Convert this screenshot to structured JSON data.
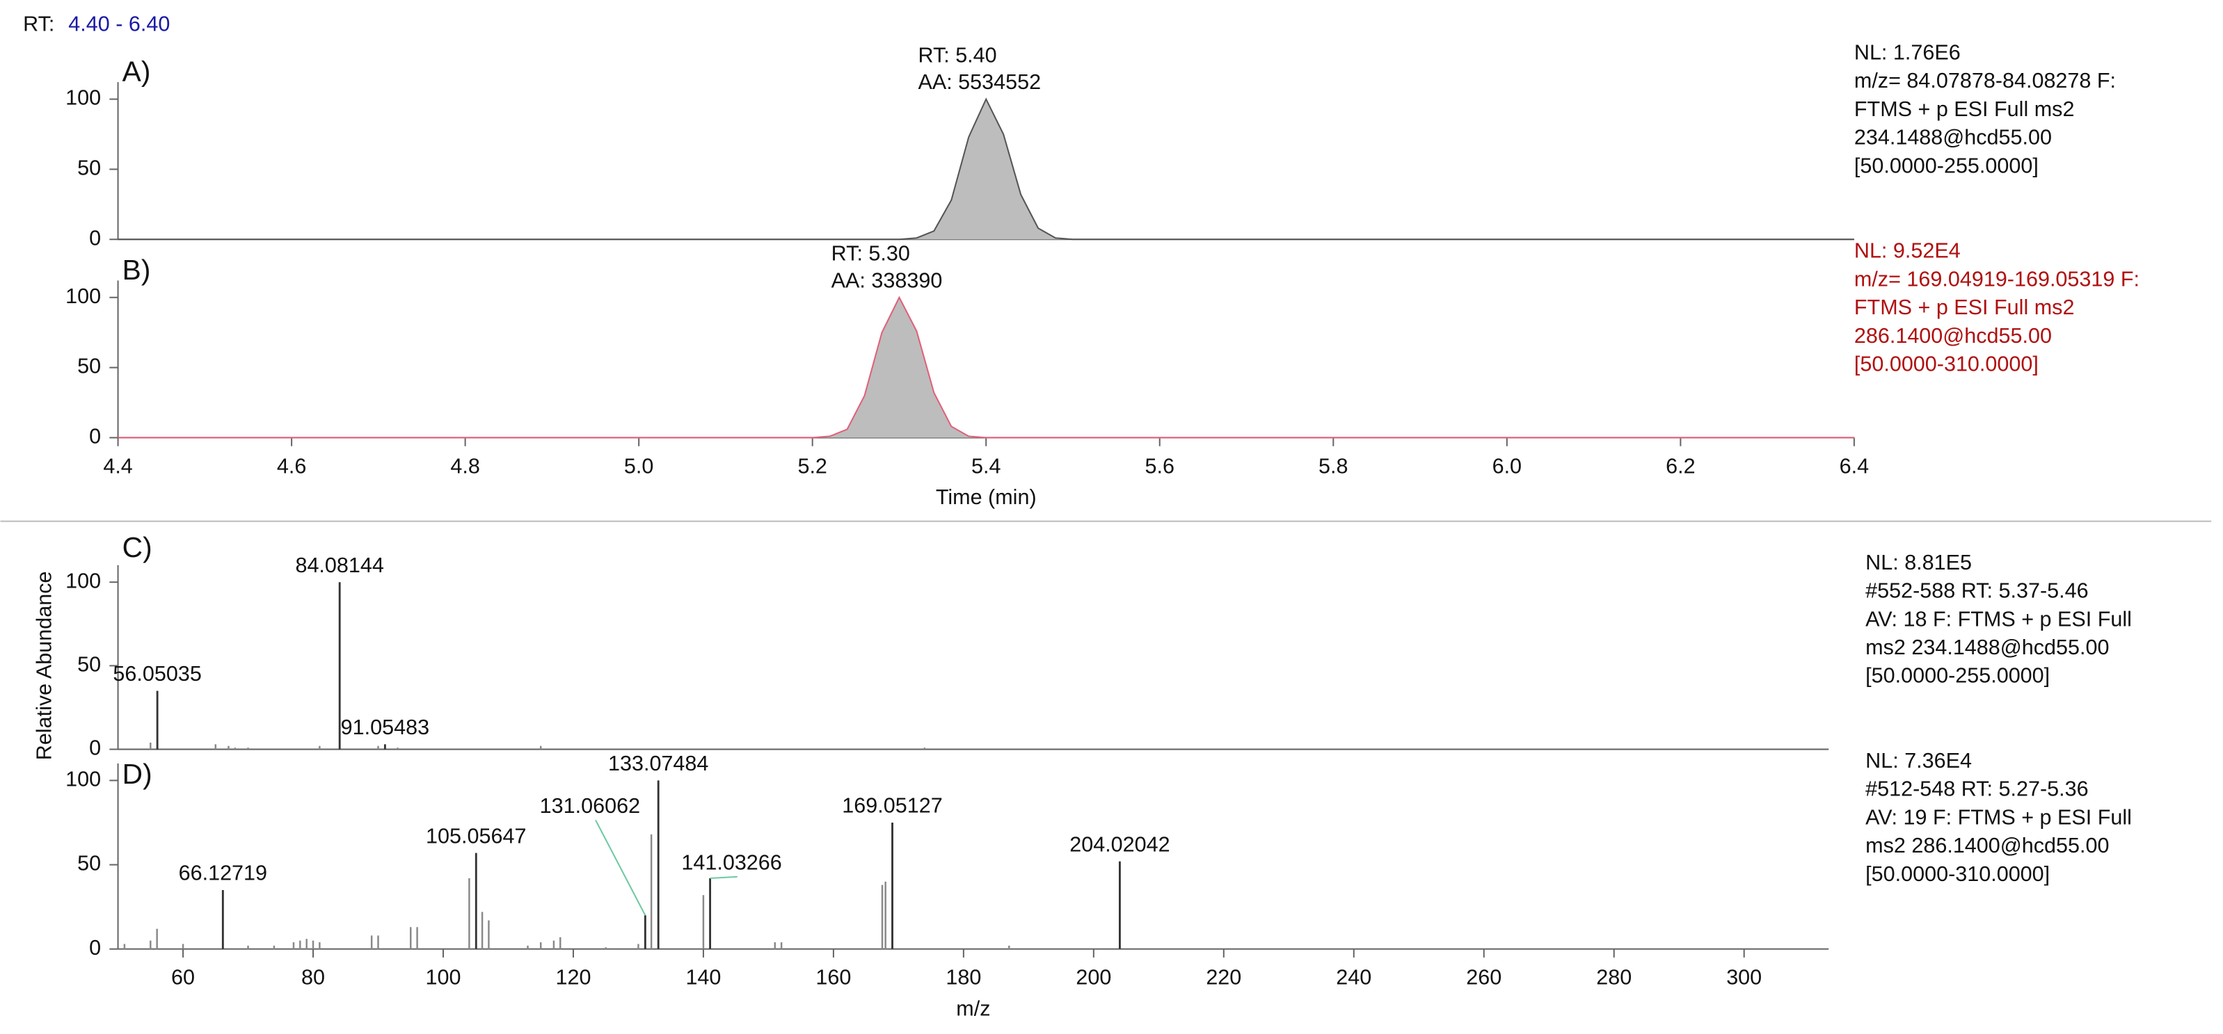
{
  "header": {
    "label": "RT:",
    "range": "4.40 - 6.40"
  },
  "chart_data": [
    {
      "type": "area",
      "tag": "A)",
      "color": "#555555",
      "fill": "#bdbdbd",
      "x": [
        4.4,
        5.3,
        5.32,
        5.34,
        5.36,
        5.38,
        5.4,
        5.42,
        5.44,
        5.46,
        5.48,
        5.5,
        6.4
      ],
      "values": [
        0,
        0,
        1,
        6,
        28,
        73,
        100,
        75,
        32,
        8,
        1,
        0,
        0
      ],
      "xlim": [
        4.4,
        6.4
      ],
      "ylim": [
        0,
        100
      ],
      "yticks": [
        0,
        50,
        100
      ],
      "annotations": [
        "RT: 5.40",
        "AA: 5534552"
      ],
      "notes": [
        "NL: 1.76E6",
        "m/z= 84.07878-84.08278 F:",
        "FTMS + p ESI Full ms2",
        "234.1488@hcd55.00",
        "[50.0000-255.0000]"
      ]
    },
    {
      "type": "area",
      "tag": "B)",
      "color": "#e0607a",
      "fill": "#bdbdbd",
      "note_color": "#b01010",
      "x": [
        4.4,
        5.2,
        5.22,
        5.24,
        5.26,
        5.28,
        5.3,
        5.32,
        5.34,
        5.36,
        5.38,
        5.4,
        6.4
      ],
      "values": [
        0,
        0,
        1,
        6,
        30,
        75,
        100,
        76,
        32,
        8,
        1,
        0,
        0
      ],
      "xlim": [
        4.4,
        6.4
      ],
      "ylim": [
        0,
        100
      ],
      "yticks": [
        0,
        50,
        100
      ],
      "xticks": [
        4.4,
        4.6,
        4.8,
        {
          "value": 5,
          "label": "5.0"
        },
        5.2,
        5.4,
        5.6,
        5.8,
        {
          "value": 6,
          "label": "6.0"
        },
        6.2,
        6.4
      ],
      "xlabel": "Time (min)",
      "annotations": [
        "RT: 5.30",
        "AA: 338390"
      ],
      "notes": [
        "NL: 9.52E4",
        "m/z= 169.04919-169.05319 F:",
        "FTMS + p ESI Full ms2",
        "286.1400@hcd55.00",
        "[50.0000-310.0000]"
      ]
    },
    {
      "type": "spectrum",
      "tag": "C)",
      "color": "#333333",
      "x": [
        55,
        65,
        67,
        68,
        70,
        81,
        90,
        93,
        115,
        174
      ],
      "values": [
        4,
        3,
        2,
        1,
        1,
        2,
        2,
        1,
        2,
        1
      ],
      "labeled_x": [
        56.05035,
        84.08144,
        91.05483
      ],
      "labeled_values": [
        35,
        100,
        3
      ],
      "xlim": [
        50,
        313
      ],
      "ylim": [
        0,
        100
      ],
      "yticks": [
        0,
        50,
        100
      ],
      "ylabel": "Relative Abundance",
      "notes": [
        "NL: 8.81E5",
        "#552-588  RT: 5.37-5.46",
        "AV: 18 F: FTMS + p ESI Full",
        "ms2 234.1488@hcd55.00",
        "[50.0000-255.0000]"
      ]
    },
    {
      "type": "spectrum",
      "tag": "D)",
      "color": "#333333",
      "x": [
        51,
        55,
        56,
        60,
        70,
        74,
        77,
        78,
        79,
        80,
        81,
        89,
        90,
        95,
        96,
        104,
        106,
        107,
        113,
        115,
        117,
        118,
        125,
        130,
        132,
        140,
        151,
        152,
        167.5,
        168,
        187
      ],
      "values": [
        3,
        5,
        12,
        3,
        2,
        2,
        4,
        5,
        6,
        5,
        4,
        8,
        8,
        13,
        13,
        42,
        22,
        17,
        2,
        4,
        5,
        7,
        1,
        3,
        68,
        32,
        4,
        4,
        38,
        40,
        2
      ],
      "labeled_x": [
        66.12719,
        105.05647,
        131.06062,
        133.07484,
        141.03266,
        169.05127,
        204.02042
      ],
      "labeled_values": [
        35,
        57,
        20,
        100,
        42,
        75,
        52
      ],
      "xlim": [
        50,
        313
      ],
      "ylim": [
        0,
        100
      ],
      "yticks": [
        0,
        50,
        100
      ],
      "xticks": [
        60,
        80,
        100,
        120,
        140,
        160,
        180,
        200,
        220,
        240,
        260,
        280,
        300
      ],
      "xlabel": "m/z",
      "notes": [
        "NL: 7.36E4",
        "#512-548  RT: 5.27-5.36",
        "AV: 19 F: FTMS + p ESI Full",
        "ms2 286.1400@hcd55.00",
        "[50.0000-310.0000]"
      ]
    }
  ]
}
